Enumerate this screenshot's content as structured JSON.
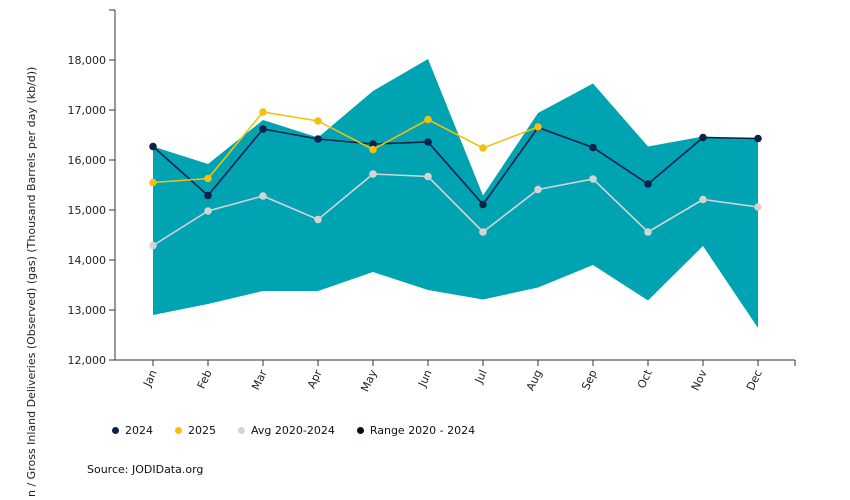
{
  "chart_data": {
    "type": "line",
    "title": "",
    "xlabel": "",
    "ylabel": "Total Crude Oil / Gross Inland Deliveries (Observed) (gas) (Thousand Barrels per day (kb/d))",
    "ylabel_visible": "n / Gross Inland Deliveries (Observed) (gas) (Thousand Barrels per day (kb/d))",
    "ylim": [
      12000,
      19000
    ],
    "yticks": [
      12000,
      13000,
      14000,
      15000,
      16000,
      17000,
      18000
    ],
    "ytick_labels": [
      "12,000",
      "13,000",
      "14,000",
      "15,000",
      "16,000",
      "17,000",
      "18,000"
    ],
    "categories": [
      "Jan",
      "Feb",
      "Mar",
      "Apr",
      "May",
      "Jun",
      "Jul",
      "Aug",
      "Sep",
      "Oct",
      "Nov",
      "Dec"
    ],
    "range": {
      "name": "Range 2020 - 2024",
      "min": [
        12900,
        13120,
        13380,
        13380,
        13760,
        13400,
        13210,
        13450,
        13900,
        13190,
        14280,
        12640
      ],
      "max": [
        16270,
        15920,
        16800,
        16450,
        17380,
        18020,
        15290,
        16940,
        17530,
        16270,
        16470,
        16430
      ]
    },
    "series": [
      {
        "name": "Avg 2020-2024",
        "values": [
          14290,
          14980,
          15280,
          14810,
          15720,
          15670,
          14560,
          15410,
          15620,
          14560,
          15210,
          15060
        ]
      },
      {
        "name": "2024",
        "values": [
          16270,
          15290,
          16620,
          16420,
          16320,
          16360,
          15110,
          16650,
          16250,
          15520,
          16450,
          16430
        ]
      },
      {
        "name": "2025",
        "values": [
          15550,
          15630,
          16960,
          16780,
          16210,
          16810,
          16240,
          16660,
          null,
          null,
          null,
          null
        ]
      }
    ],
    "legend": [
      {
        "label": "2024",
        "color": "#0d2149"
      },
      {
        "label": "2025",
        "color": "#f5bf0f"
      },
      {
        "label": "Avg 2020-2024",
        "color": "#d4d4d4"
      },
      {
        "label": "Range 2020 - 2024",
        "color": "#050a1a"
      }
    ],
    "colors": {
      "range_fill": "#00a3b1",
      "line_2024": "#0d2149",
      "line_2025": "#f5bf0f",
      "line_avg": "#d4d4d4"
    }
  },
  "source": "Source: JODIData.org"
}
